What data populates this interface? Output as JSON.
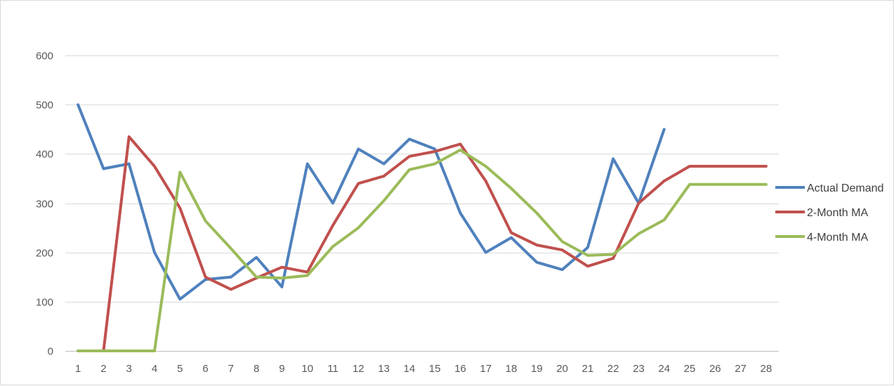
{
  "chart_data": {
    "type": "line",
    "title": "",
    "xlabel": "",
    "ylabel": "",
    "x": [
      1,
      2,
      3,
      4,
      5,
      6,
      7,
      8,
      9,
      10,
      11,
      12,
      13,
      14,
      15,
      16,
      17,
      18,
      19,
      20,
      21,
      22,
      23,
      24,
      25,
      26,
      27,
      28
    ],
    "ylim": [
      0,
      600
    ],
    "yticks": [
      0,
      100,
      200,
      300,
      400,
      500,
      600
    ],
    "grid": true,
    "legend_position": "right",
    "series": [
      {
        "name": "Actual Demand",
        "color": "#4f81bd",
        "values": [
          500,
          370,
          380,
          200,
          105,
          145,
          150,
          190,
          130,
          380,
          300,
          410,
          380,
          430,
          410,
          280,
          200,
          230,
          180,
          165,
          210,
          390,
          300,
          450,
          null,
          null,
          null,
          null
        ]
      },
      {
        "name": "2-Month MA",
        "color": "#c0504d",
        "values": [
          0,
          0,
          435,
          375,
          290,
          150,
          125,
          148,
          170,
          160,
          255,
          340,
          355,
          395,
          405,
          420,
          345,
          240,
          215,
          205,
          172,
          188,
          300,
          345,
          375,
          375,
          375,
          375
        ]
      },
      {
        "name": "4-Month MA",
        "color": "#9bbb59",
        "values": [
          0,
          0,
          0,
          0,
          363,
          264,
          208,
          150,
          148,
          153,
          212,
          250,
          305,
          368,
          380,
          408,
          375,
          330,
          280,
          222,
          194,
          196,
          238,
          266,
          338,
          338,
          338,
          338
        ]
      }
    ]
  }
}
